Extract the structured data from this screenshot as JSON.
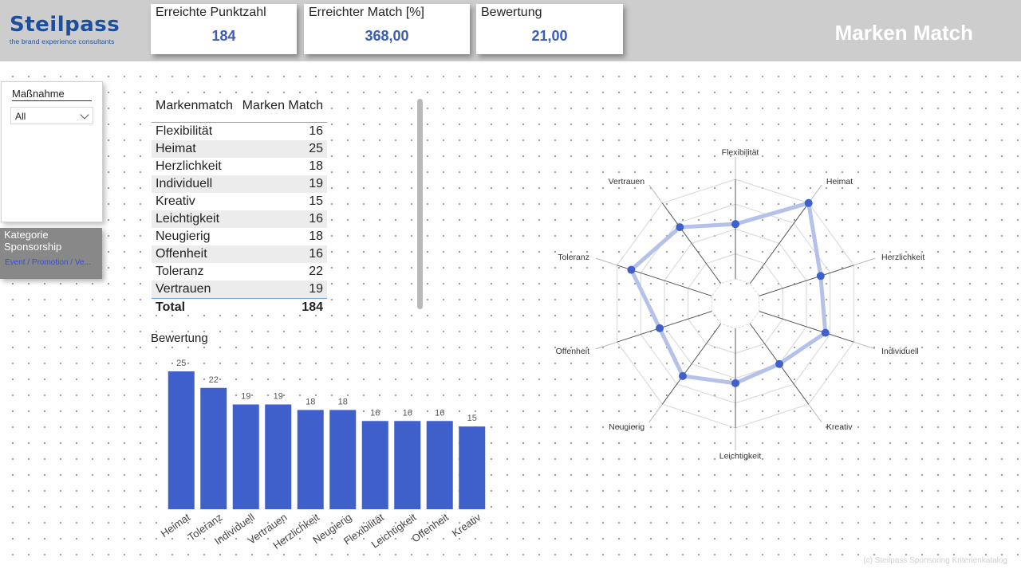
{
  "brand": {
    "name": "Steilpass",
    "tagline": "the brand experience consultants"
  },
  "kpis": [
    {
      "title": "Erreichte Punktzahl",
      "value": "184"
    },
    {
      "title": "Erreichter Match [%]",
      "value": "368,00"
    },
    {
      "title": "Bewertung",
      "value": "21,00"
    }
  ],
  "page_title": "Marken Match",
  "slicer": {
    "title": "Maßnahme",
    "selected": "All"
  },
  "kategorie": {
    "title": "Kategorie Sponsorship",
    "value": "Event / Promotion / Ve..."
  },
  "table": {
    "headers": [
      "Markenmatch",
      "Marken Match"
    ],
    "rows": [
      {
        "label": "Flexibilität",
        "value": "16"
      },
      {
        "label": "Heimat",
        "value": "25"
      },
      {
        "label": "Herzlichkeit",
        "value": "18"
      },
      {
        "label": "Individuell",
        "value": "19"
      },
      {
        "label": "Kreativ",
        "value": "15"
      },
      {
        "label": "Leichtigkeit",
        "value": "16"
      },
      {
        "label": "Neugierig",
        "value": "18"
      },
      {
        "label": "Offenheit",
        "value": "16"
      },
      {
        "label": "Toleranz",
        "value": "22"
      },
      {
        "label": "Vertrauen",
        "value": "19"
      }
    ],
    "total_label": "Total",
    "total_value": "184"
  },
  "chart_data": [
    {
      "type": "bar",
      "title": "Bewertung",
      "categories": [
        "Heimat",
        "Toleranz",
        "Individuell",
        "Vertrauen",
        "Herzlichkeit",
        "Neugierig",
        "Flexibilität",
        "Leichtigkeit",
        "Offenheit",
        "Kreativ"
      ],
      "values": [
        25,
        22,
        19,
        19,
        18,
        18,
        16,
        16,
        16,
        15
      ],
      "ylim": [
        0,
        25
      ],
      "color": "#3f5fcb",
      "data_labels": true
    },
    {
      "type": "radar",
      "categories": [
        "Flexibilität",
        "Heimat",
        "Herzlichkeit",
        "Individuell",
        "Kreativ",
        "Leichtigkeit",
        "Neugierig",
        "Offenheit",
        "Toleranz",
        "Vertrauen"
      ],
      "values": [
        16,
        25,
        18,
        19,
        15,
        16,
        18,
        16,
        22,
        19
      ],
      "range": [
        0,
        25
      ],
      "line_color": "#b4c2ea",
      "marker_color": "#3f5fcb"
    }
  ],
  "footer": "(c) Steilpass Sponsoring Kriterienkatalog"
}
